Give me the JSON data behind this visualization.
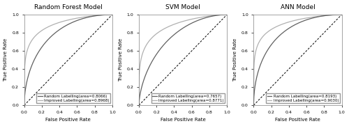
{
  "titles": [
    "Random Forest Model",
    "SVM Model",
    "ANN Model"
  ],
  "xlabel": "False Positive Rate",
  "ylabel": "True Positive Rate",
  "legend_labels": [
    [
      "Random Labelling(area=0.8066)",
      "Improved Labelling(area=0.8968)"
    ],
    [
      "Random Labelling(area=0.7657)",
      "Improved Labelling(area=0.8771)"
    ],
    [
      "Random Labelling(area=0.8193)",
      "Improved Labelling(area=0.9030)"
    ]
  ],
  "random_color": "#606060",
  "improved_color": "#b0b0b0",
  "diagonal_color": "#000000",
  "random_auc": [
    0.8066,
    0.7657,
    0.8193
  ],
  "improved_auc": [
    0.8968,
    0.8771,
    0.903
  ],
  "figsize": [
    5.0,
    1.81
  ],
  "dpi": 100,
  "fontsize_title": 6.5,
  "fontsize_label": 5.0,
  "fontsize_tick": 4.5,
  "fontsize_legend": 4.0,
  "linewidth": 0.9,
  "diagonal_linewidth": 0.7
}
